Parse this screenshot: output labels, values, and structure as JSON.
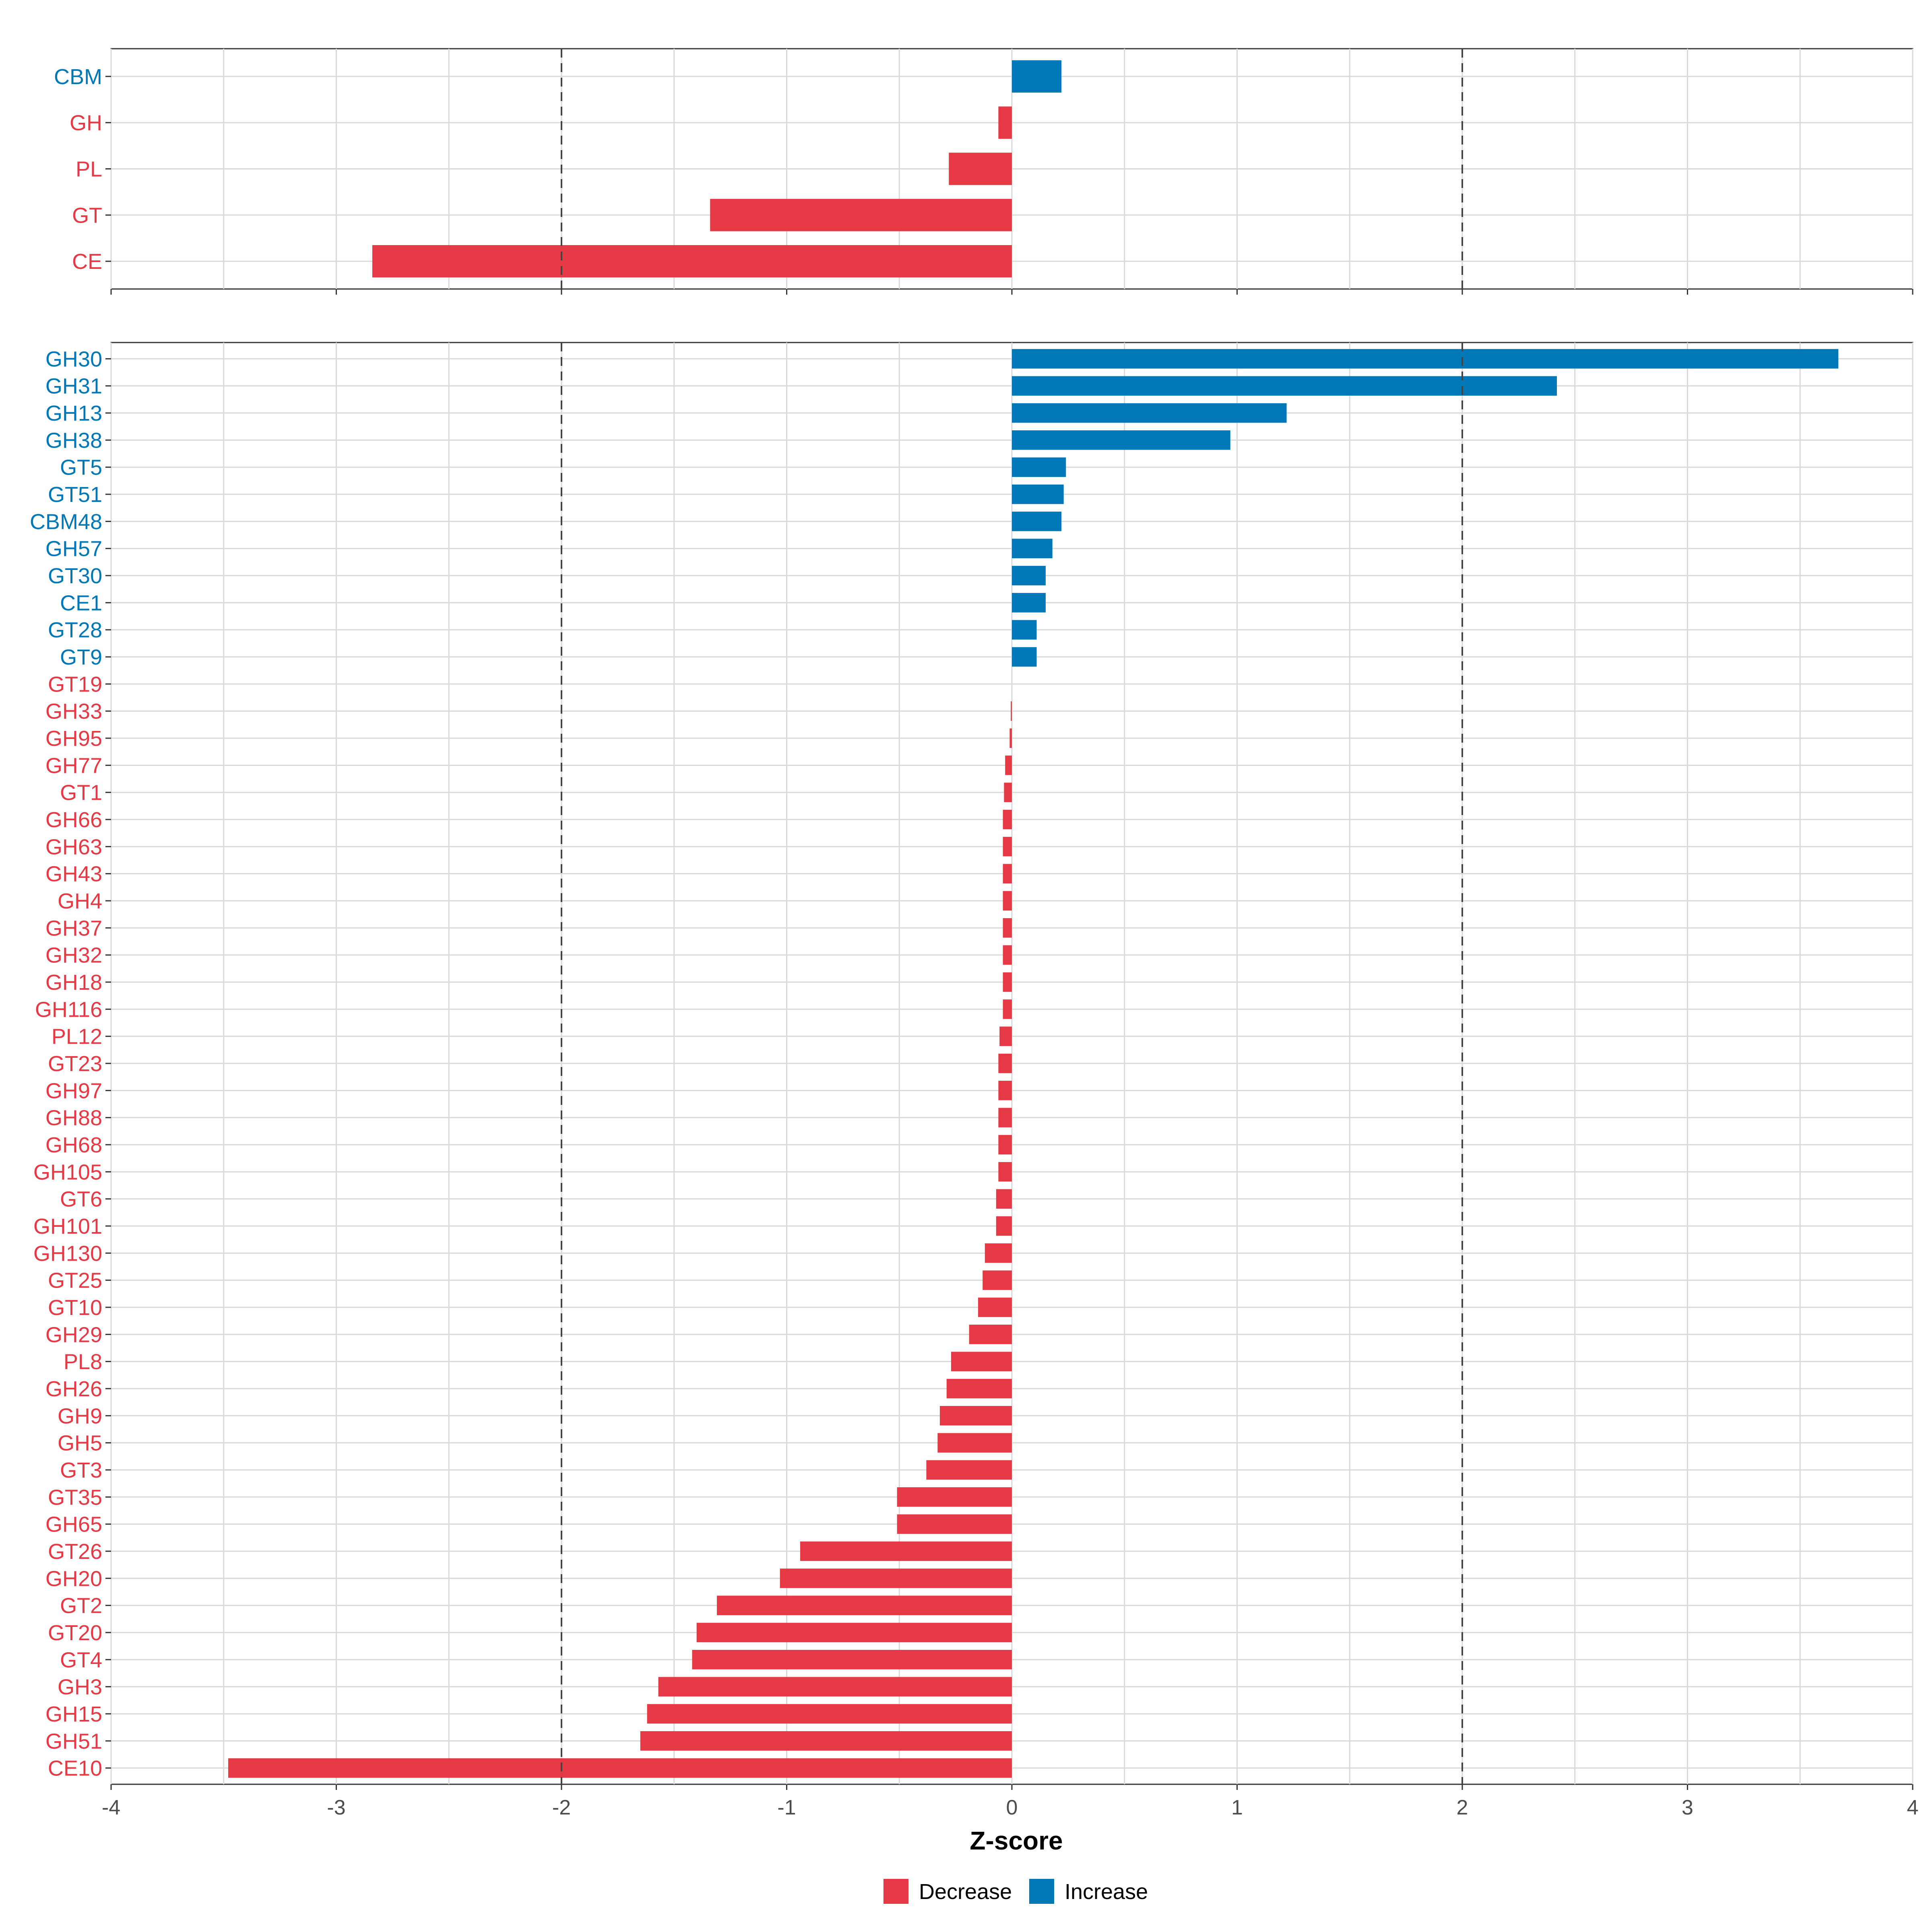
{
  "colors": {
    "decrease": "#e63946",
    "increase": "#0077b6"
  },
  "legend": {
    "decrease_label": "Decrease",
    "increase_label": "Increase"
  },
  "chart_data": [
    {
      "type": "bar",
      "orientation": "horizontal",
      "panel": "class-level",
      "xlim": [
        -4,
        4
      ],
      "reference_lines": [
        -2,
        2
      ],
      "categories": [
        "CBM",
        "GH",
        "PL",
        "GT",
        "CE"
      ],
      "values": [
        0.22,
        -0.06,
        -0.28,
        -1.34,
        -2.84
      ]
    },
    {
      "type": "bar",
      "orientation": "horizontal",
      "panel": "family-level",
      "xlim": [
        -4,
        4
      ],
      "reference_lines": [
        -2,
        2
      ],
      "xlabel": "Z-score",
      "xticks": [
        -4,
        -3,
        -2,
        -1,
        0,
        1,
        2,
        3,
        4
      ],
      "categories": [
        "GH30",
        "GH31",
        "GH13",
        "GH38",
        "GT5",
        "GT51",
        "CBM48",
        "GH57",
        "GT30",
        "CE1",
        "GT28",
        "GT9",
        "GT19",
        "GH33",
        "GH95",
        "GH77",
        "GT1",
        "GH66",
        "GH63",
        "GH43",
        "GH4",
        "GH37",
        "GH32",
        "GH18",
        "GH116",
        "PL12",
        "GT23",
        "GH97",
        "GH88",
        "GH68",
        "GH105",
        "GT6",
        "GH101",
        "GH130",
        "GT25",
        "GT10",
        "GH29",
        "PL8",
        "GH26",
        "GH9",
        "GH5",
        "GT3",
        "GT35",
        "GH65",
        "GT26",
        "GH20",
        "GT2",
        "GT20",
        "GT4",
        "GH3",
        "GH15",
        "GH51",
        "CE10"
      ],
      "values": [
        3.67,
        2.42,
        1.22,
        0.97,
        0.24,
        0.23,
        0.22,
        0.18,
        0.15,
        0.15,
        0.11,
        0.11,
        0.0,
        -0.005,
        -0.01,
        -0.03,
        -0.035,
        -0.04,
        -0.04,
        -0.04,
        -0.04,
        -0.04,
        -0.04,
        -0.04,
        -0.04,
        -0.055,
        -0.06,
        -0.06,
        -0.06,
        -0.06,
        -0.06,
        -0.07,
        -0.07,
        -0.12,
        -0.13,
        -0.15,
        -0.19,
        -0.27,
        -0.29,
        -0.32,
        -0.33,
        -0.38,
        -0.51,
        -0.51,
        -0.94,
        -1.03,
        -1.31,
        -1.4,
        -1.42,
        -1.57,
        -1.62,
        -1.65,
        -3.48
      ]
    }
  ]
}
